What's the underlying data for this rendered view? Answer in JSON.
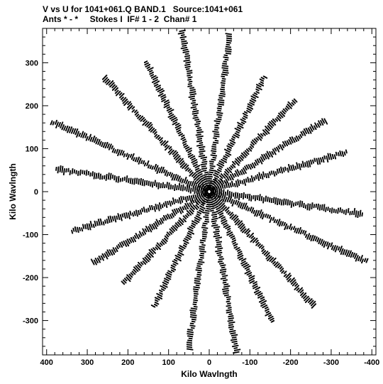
{
  "header": {
    "line1": "V vs U for 1041+061.Q BAND.1   Source:1041+061",
    "line2": "Ants * - *     Stokes I  IF# 1 - 2  Chan# 1"
  },
  "chart_data": {
    "type": "scatter",
    "title": "V vs U for 1041+061.Q BAND.1   Source:1041+061",
    "subtitle": "Ants * - *     Stokes I  IF# 1 - 2  Chan# 1",
    "xlabel": "Kilo Wavlngth",
    "ylabel": "Kilo Wavlngth",
    "xlim": [
      410,
      -410
    ],
    "ylim": [
      -380,
      380
    ],
    "x_ticks": [
      400,
      300,
      200,
      100,
      0,
      -100,
      -200,
      -300,
      -400
    ],
    "y_ticks": [
      300,
      200,
      100,
      0,
      -100,
      -200,
      -300
    ],
    "x_tick_labels": [
      "400",
      "300",
      "200",
      "100",
      "0",
      "-100",
      "-200",
      "-300",
      "-400"
    ],
    "y_tick_labels": [
      "300",
      "200",
      "100",
      "0",
      "-100",
      "-200",
      "-300"
    ],
    "grid": false,
    "marker_color": "#000000",
    "baseline_tracks": [
      {
        "angle_deg": 8,
        "length": 380
      },
      {
        "angle_deg": 23,
        "length": 420
      },
      {
        "angle_deg": 46,
        "length": 370
      },
      {
        "angle_deg": 63,
        "length": 340
      },
      {
        "angle_deg": 80,
        "length": 380
      },
      {
        "angle_deg": 98,
        "length": 370
      },
      {
        "angle_deg": 117,
        "length": 300
      },
      {
        "angle_deg": 135,
        "length": 300
      },
      {
        "angle_deg": 150,
        "length": 330
      },
      {
        "angle_deg": 165,
        "length": 350
      }
    ]
  }
}
